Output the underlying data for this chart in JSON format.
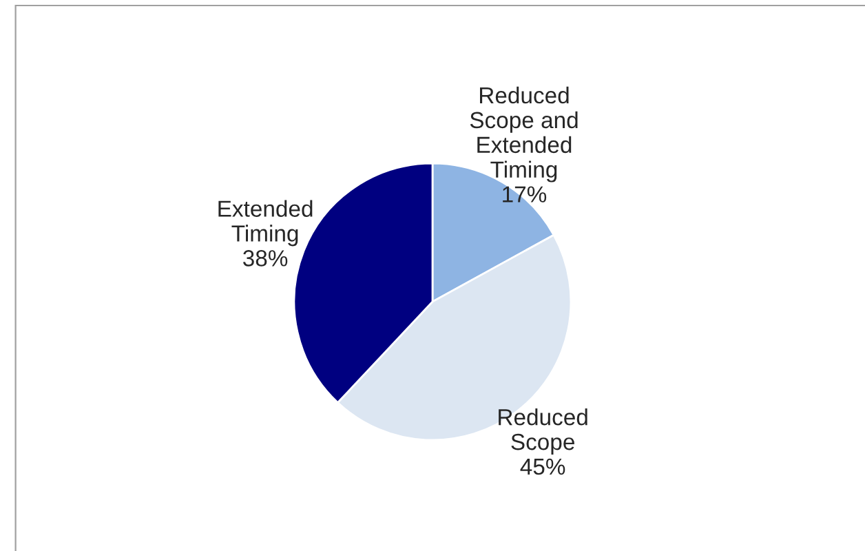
{
  "chart_data": {
    "type": "pie",
    "categories": [
      "Reduced\nScope and\nExtended\nTiming",
      "Reduced\nScope",
      "Extended\nTiming"
    ],
    "values": [
      17,
      45,
      38
    ],
    "value_labels": [
      "17%",
      "45%",
      "38%"
    ],
    "colors": [
      "#8eb4e3",
      "#dce6f2",
      "#000080"
    ]
  }
}
